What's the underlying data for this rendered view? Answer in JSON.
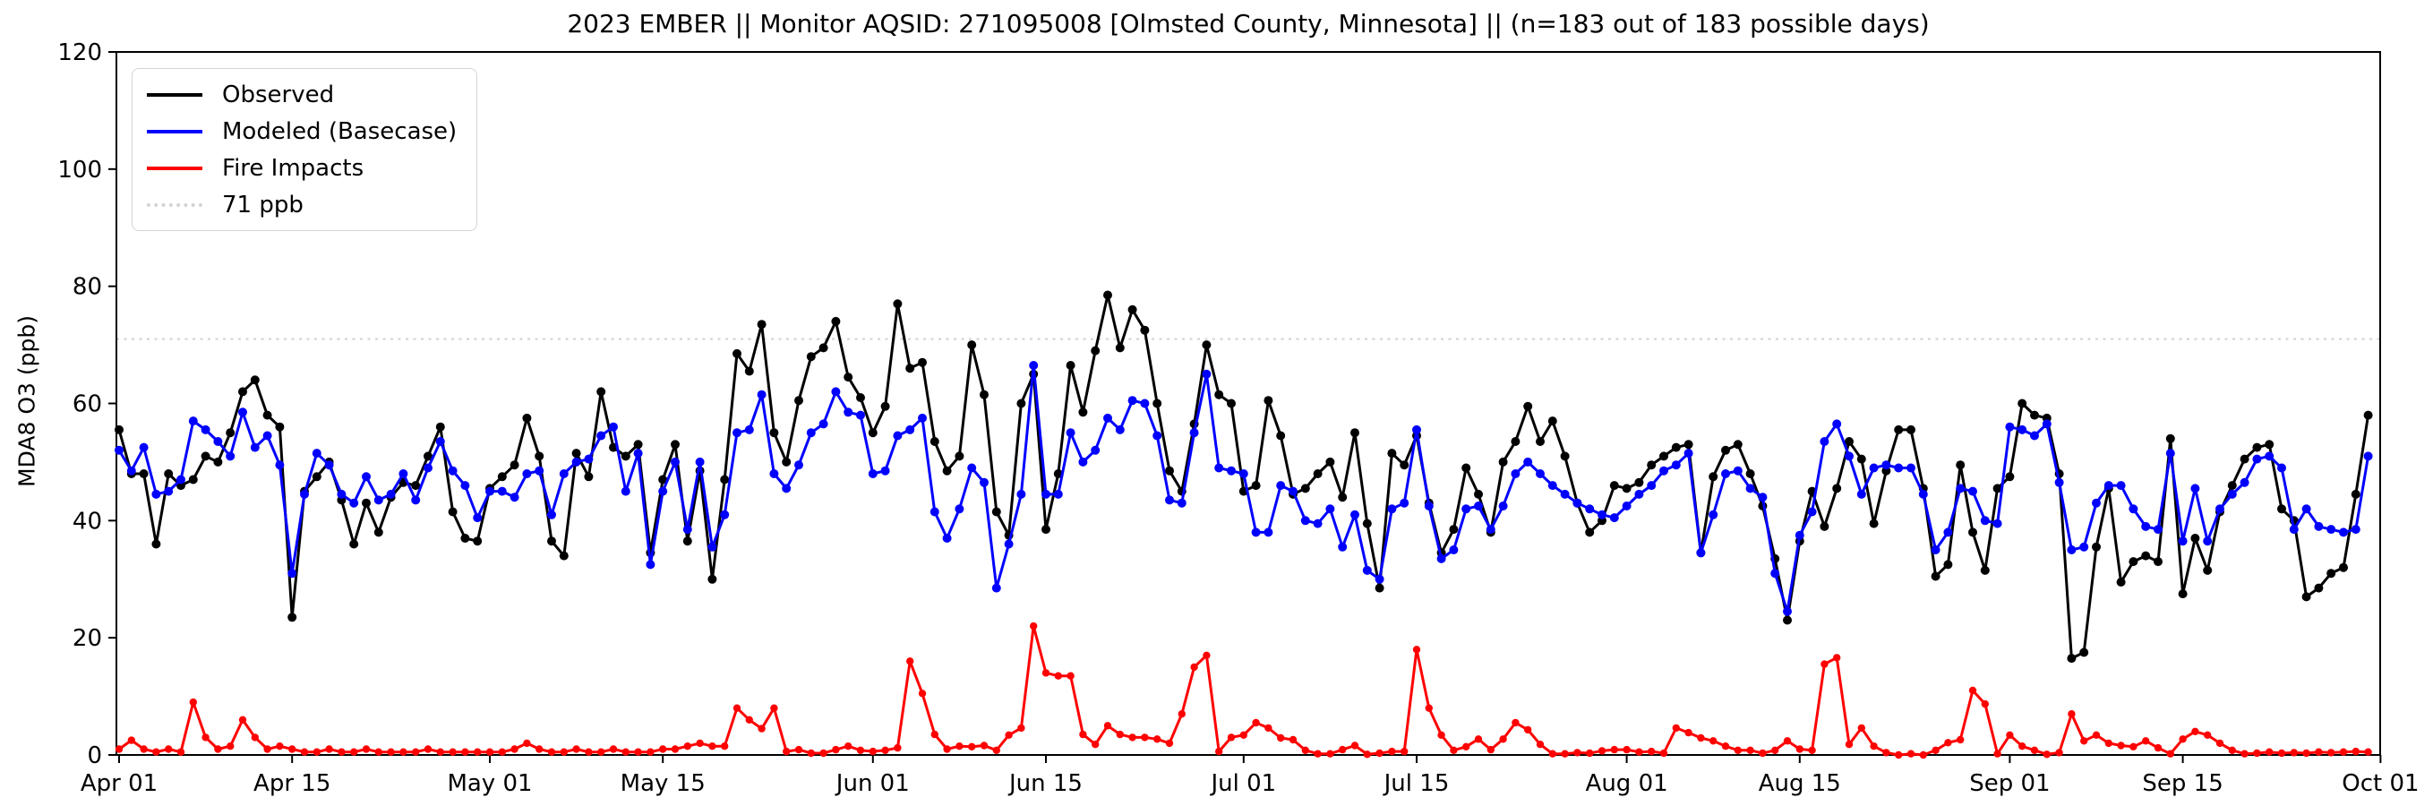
{
  "chart_data": {
    "type": "line",
    "title": "2023 EMBER || Monitor AQSID: 271095008 [Olmsted County, Minnesota] || (n=183 out of 183 possible days)",
    "xlabel": "",
    "ylabel": "MDA8 O3 (ppb)",
    "ylim": [
      0,
      120
    ],
    "yticks": [
      0,
      20,
      40,
      60,
      80,
      100,
      120
    ],
    "grid": false,
    "legend_position": "upper-left",
    "n_days": 183,
    "months": [
      {
        "name": "Apr",
        "days": 30
      },
      {
        "name": "May",
        "days": 31
      },
      {
        "name": "Jun",
        "days": 30
      },
      {
        "name": "Jul",
        "days": 31
      },
      {
        "name": "Aug",
        "days": 31
      },
      {
        "name": "Sep",
        "days": 30
      }
    ],
    "xticks": [
      {
        "label": "Apr 01",
        "day": 0
      },
      {
        "label": "Apr 15",
        "day": 14
      },
      {
        "label": "May 01",
        "day": 30
      },
      {
        "label": "May 15",
        "day": 44
      },
      {
        "label": "Jun 01",
        "day": 61
      },
      {
        "label": "Jun 15",
        "day": 75
      },
      {
        "label": "Jul 01",
        "day": 91
      },
      {
        "label": "Jul 15",
        "day": 105
      },
      {
        "label": "Aug 01",
        "day": 122
      },
      {
        "label": "Aug 15",
        "day": 136
      },
      {
        "label": "Sep 01",
        "day": 153
      },
      {
        "label": "Sep 15",
        "day": 167
      },
      {
        "label": "Oct 01",
        "day": 183
      }
    ],
    "threshold": {
      "label": "71 ppb",
      "value": 71,
      "color": "#d3d3d3",
      "style": "dotted"
    },
    "series": [
      {
        "name": "Observed",
        "color": "#000000",
        "values": [
          55.5,
          48,
          48,
          36,
          48,
          46,
          47,
          51,
          50,
          55,
          62,
          64,
          58,
          56,
          23.5,
          45,
          47.5,
          50,
          43.5,
          36,
          43,
          38,
          44,
          46.5,
          46,
          51,
          56,
          41.5,
          37,
          36.5,
          45.5,
          47.5,
          49.5,
          57.5,
          51,
          36.5,
          34,
          51.5,
          47.5,
          62,
          52.5,
          51,
          53,
          34.5,
          47,
          53,
          36.5,
          48.5,
          30,
          47,
          68.5,
          65.5,
          73.5,
          55,
          50,
          60.5,
          68,
          69.5,
          74,
          64.5,
          61,
          55,
          59.5,
          77,
          66,
          67,
          53.5,
          48.5,
          51,
          70,
          61.5,
          41.5,
          37.5,
          60,
          65,
          38.5,
          48,
          66.5,
          58.5,
          69,
          78.5,
          69.5,
          76,
          72.5,
          60,
          48.5,
          45,
          56.5,
          70,
          61.5,
          60,
          45,
          46,
          60.5,
          54.5,
          44.5,
          45.5,
          48,
          50,
          44,
          55,
          39.5,
          28.5,
          51.5,
          49.5,
          54.5,
          43,
          34.5,
          38.5,
          49,
          44.5,
          38,
          50,
          53.5,
          59.5,
          53.5,
          57,
          51,
          43,
          38,
          40,
          46,
          45.5,
          46.5,
          49.5,
          51,
          52.5,
          53,
          34.5,
          47.5,
          52,
          53,
          48,
          42.5,
          33.5,
          23,
          36.5,
          45,
          39,
          45.5,
          53.5,
          50.5,
          39.5,
          48.5,
          55.5,
          55.5,
          45.5,
          30.5,
          32.5,
          49.5,
          38,
          31.5,
          45.5,
          47.5,
          60,
          58,
          57.5,
          48,
          16.5,
          17.5,
          35.5,
          45.5,
          29.5,
          33,
          34,
          33,
          54,
          27.5,
          37,
          31.5,
          41.5,
          46,
          50.5,
          52.5,
          53,
          42,
          40,
          27,
          28.5,
          31,
          32,
          44.5,
          58
        ]
      },
      {
        "name": "Modeled (Basecase)",
        "color": "#0000ff",
        "values": [
          52,
          48.5,
          52.5,
          44.5,
          45,
          47,
          57,
          55.5,
          53.5,
          51,
          58.5,
          52.5,
          54.5,
          49.5,
          31,
          44.5,
          51.5,
          49.5,
          44.5,
          43,
          47.5,
          43.5,
          44.5,
          48,
          43.5,
          49,
          53.5,
          48.5,
          46,
          40.5,
          45,
          45,
          44,
          48,
          48.5,
          41,
          48,
          50,
          50.5,
          54.5,
          56,
          45,
          51.5,
          32.5,
          45,
          50,
          38.5,
          50,
          35.5,
          41,
          55,
          55.5,
          61.5,
          48,
          45.5,
          49.5,
          55,
          56.5,
          62,
          58.5,
          58,
          48,
          48.5,
          54.5,
          55.5,
          57.5,
          41.5,
          37,
          42,
          49,
          46.5,
          28.5,
          36,
          44.5,
          66.5,
          44.5,
          44.5,
          55,
          50,
          52,
          57.5,
          55.5,
          60.5,
          60,
          54.5,
          43.5,
          43,
          55,
          65,
          49,
          48.5,
          48,
          38,
          38,
          46,
          45,
          40,
          39.5,
          42,
          35.5,
          41,
          31.5,
          30,
          42,
          43,
          55.5,
          42.5,
          33.5,
          35,
          42,
          42.5,
          38.5,
          42.5,
          48,
          50,
          48,
          46,
          44.5,
          43,
          42,
          41,
          40.5,
          42.5,
          44.5,
          46,
          48.5,
          49.5,
          51.5,
          34.5,
          41,
          48,
          48.5,
          45.5,
          44,
          31,
          24.5,
          37.5,
          41.5,
          53.5,
          56.5,
          51,
          44.5,
          49,
          49.5,
          49,
          49,
          44.5,
          35,
          38,
          45.5,
          45,
          40,
          39.5,
          56,
          55.5,
          54.5,
          56.5,
          46.5,
          35,
          35.5,
          43,
          46,
          46,
          42,
          39,
          38.5,
          51.5,
          36.5,
          45.5,
          36.5,
          42,
          44.5,
          46.5,
          50.5,
          51,
          49,
          38.5,
          42,
          39,
          38.5,
          38,
          38.5,
          51
        ]
      },
      {
        "name": "Fire Impacts",
        "color": "#ff0000",
        "values": [
          1,
          2.5,
          1,
          0.5,
          1,
          0.5,
          9,
          3,
          1,
          1.5,
          6,
          3,
          1,
          1.5,
          1,
          0.5,
          0.5,
          1,
          0.5,
          0.5,
          1,
          0.5,
          0.5,
          0.5,
          0.5,
          1,
          0.5,
          0.5,
          0.5,
          0.5,
          0.5,
          0.5,
          1,
          2,
          1,
          0.5,
          0.5,
          1,
          0.5,
          0.5,
          1,
          0.5,
          0.5,
          0.5,
          1,
          1,
          1.5,
          2,
          1.5,
          1.5,
          8,
          6,
          4.5,
          8,
          0.6,
          0.9,
          0.3,
          0.3,
          0.9,
          1.5,
          0.8,
          0.6,
          0.8,
          1.2,
          16,
          10.5,
          3.5,
          1,
          1.5,
          1.4,
          1.6,
          0.8,
          3.4,
          4.6,
          22,
          14,
          13.5,
          13.5,
          3.5,
          1.8,
          5,
          3.5,
          3,
          3,
          2.7,
          2,
          7,
          15,
          17,
          0.6,
          3,
          3.4,
          5.5,
          4.6,
          2.9,
          2.6,
          0.8,
          0.2,
          0.2,
          0.9,
          1.6,
          0.1,
          0.3,
          0.6,
          0.6,
          18,
          8,
          3.4,
          0.8,
          1.4,
          2.7,
          0.9,
          2.7,
          5.5,
          4.3,
          1.8,
          0.2,
          0.2,
          0.4,
          0.3,
          0.7,
          0.9,
          0.9,
          0.5,
          0.6,
          0.3,
          4.6,
          3.8,
          2.9,
          2.4,
          1.5,
          0.8,
          0.8,
          0.3,
          0.8,
          2.4,
          1,
          0.8,
          15.5,
          16.6,
          1.8,
          4.6,
          1.5,
          0.4,
          0,
          0.2,
          0,
          0.8,
          2.1,
          2.6,
          11,
          8.7,
          0.2,
          3.4,
          1.5,
          0.8,
          0.1,
          0.4,
          7,
          2.4,
          3.4,
          2,
          1.6,
          1.4,
          2.4,
          1.2,
          0.2,
          2.7,
          4,
          3.4,
          2,
          0.8,
          0.2,
          0.3,
          0.5,
          0.3,
          0.4,
          0.3,
          0.5,
          0.4,
          0.5,
          0.6,
          0.5
        ]
      }
    ]
  }
}
